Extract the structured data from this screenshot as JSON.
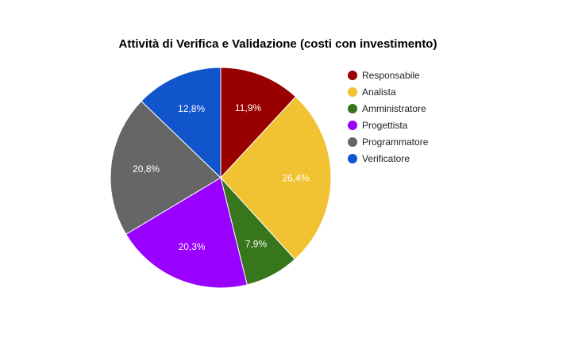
{
  "chart_data": {
    "type": "pie",
    "title": "Attività di Verifica e Validazione (costi con investimento)",
    "legend_position": "right",
    "slices": [
      {
        "name": "Responsabile",
        "value": 11.9,
        "label": "11,9%",
        "color": "#990000"
      },
      {
        "name": "Analista",
        "value": 26.4,
        "label": "26,4%",
        "color": "#f1c232"
      },
      {
        "name": "Amministratore",
        "value": 7.9,
        "label": "7,9%",
        "color": "#38761d"
      },
      {
        "name": "Progettista",
        "value": 20.3,
        "label": "20,3%",
        "color": "#9900ff"
      },
      {
        "name": "Programmatore",
        "value": 20.8,
        "label": "20,8%",
        "color": "#666666"
      },
      {
        "name": "Verificatore",
        "value": 12.8,
        "label": "12,8%",
        "color": "#1155cc"
      }
    ]
  }
}
